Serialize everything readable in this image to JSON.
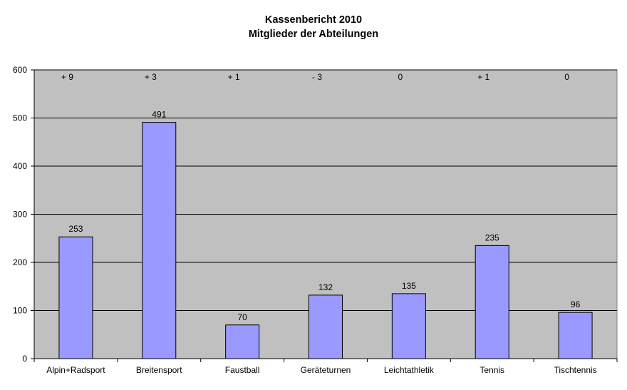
{
  "chart_data": {
    "type": "bar",
    "title": "Kassenbericht  2010",
    "subtitle": "Mitglieder  der Abteilungen",
    "categories": [
      "Alpin+Radsport",
      "Breitensport",
      "Faustball",
      "Geräteturnen",
      "Leichtathletik",
      "Tennis",
      "Tischtennis"
    ],
    "values": [
      253,
      491,
      70,
      132,
      135,
      235,
      96
    ],
    "changes": [
      "+ 9",
      "+ 3",
      "+ 1",
      "- 3",
      "0",
      "+ 1",
      "0"
    ],
    "ylim": [
      0,
      600
    ],
    "yticks": [
      "0",
      "100",
      "200",
      "300",
      "400",
      "500",
      "600"
    ],
    "grid": true,
    "legend": "none",
    "colors": {
      "bar_fill": "#9999ff",
      "bar_stroke": "#000000",
      "plot_background": "#c0c0c0",
      "gridline": "#000000"
    }
  }
}
